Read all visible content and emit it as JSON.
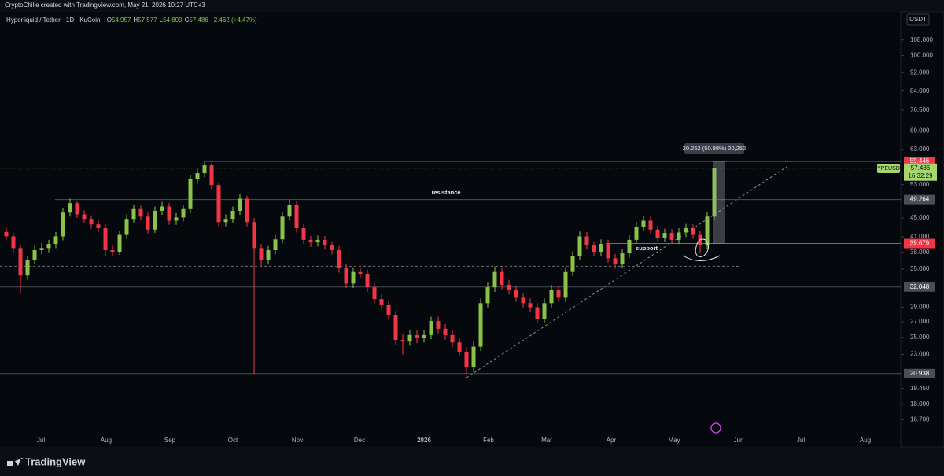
{
  "header": {
    "attribution": "CryptoChille created with TradingView.com, May 21, 2026 10:27 UTC+3",
    "brand": "TradingView"
  },
  "chart_data": {
    "type": "candlestick",
    "symbol": "Hyperliquid / Tether · 1D · KuCoin",
    "ohlc": [
      {
        "key": "O",
        "value": 54.957
      },
      {
        "key": "H",
        "value": 57.577
      },
      {
        "key": "L",
        "value": 54.809
      },
      {
        "key": "C",
        "value": 57.486
      }
    ],
    "change": {
      "value": 2.462,
      "label": "+2.462"
    },
    "change_pct": {
      "value": 4.47,
      "label": "(+4.47%)"
    },
    "currency": "USDT",
    "ticker": "HYPEUSDT",
    "last_price": 57.486,
    "countdown": "16:32:29",
    "log_scale": true,
    "grid": false,
    "up_color": "#8bc34a",
    "down_color": "#f23645",
    "ylim": [
      14.6,
      124
    ],
    "yticks": [
      {
        "value": 108,
        "label": "108.000"
      },
      {
        "value": 100,
        "label": "100.000"
      },
      {
        "value": 92,
        "label": "92.000"
      },
      {
        "value": 84,
        "label": "84.000"
      },
      {
        "value": 76.5,
        "label": "76.500"
      },
      {
        "value": 69,
        "label": "69.000"
      },
      {
        "value": 63,
        "label": "63.000"
      },
      {
        "value": 53,
        "label": "53.000"
      },
      {
        "value": 45,
        "label": "45.000"
      },
      {
        "value": 41,
        "label": "41.000"
      },
      {
        "value": 38,
        "label": "38.000"
      },
      {
        "value": 35,
        "label": "35.000"
      },
      {
        "value": 29,
        "label": "29.000"
      },
      {
        "value": 27,
        "label": "27.000"
      },
      {
        "value": 25,
        "label": "25.000"
      },
      {
        "value": 23,
        "label": "23.000"
      },
      {
        "value": 19.45,
        "label": "19.450"
      },
      {
        "value": 18,
        "label": "18.000"
      },
      {
        "value": 16.7,
        "label": "16.700"
      }
    ],
    "x_labels": [
      "Jul",
      "Aug",
      "Sep",
      "Oct",
      "Nov",
      "Dec",
      "2026",
      "Feb",
      "Mar",
      "Apr",
      "May",
      "Jun",
      "Jul",
      "Aug"
    ],
    "open": [
      42.0,
      41.1,
      38.8,
      33.9,
      36.6,
      38.4,
      38.8,
      39.6,
      41.1,
      46.2,
      48.4,
      45.8,
      44.8,
      43.6,
      42.8,
      38.4,
      38.1,
      41.4,
      44.8,
      47.0,
      45.3,
      42.5,
      46.6,
      47.6,
      44.4,
      45.1,
      47.0,
      54.4,
      56.1,
      58.3,
      52.9,
      44.1,
      44.8,
      46.6,
      49.5,
      44.1,
      38.8,
      36.6,
      38.4,
      40.5,
      45.3,
      48.0,
      42.8,
      40.4,
      39.9,
      40.4,
      39.3,
      38.4,
      35.2,
      32.6,
      34.5,
      34.2,
      32.0,
      30.2,
      29.3,
      27.9,
      24.7,
      24.5,
      25.3,
      24.9,
      25.3,
      27.1,
      26.1,
      25.3,
      24.4,
      23.3,
      21.6,
      23.9,
      29.6,
      32.0,
      34.5,
      32.4,
      31.6,
      30.4,
      29.6,
      29.0,
      27.4,
      29.6,
      31.6,
      30.4,
      34.5,
      37.3,
      41.1,
      39.3,
      38.1,
      39.6,
      36.9,
      35.9,
      37.8,
      40.4,
      43.1,
      44.4,
      42.5,
      40.8,
      41.8,
      40.4,
      41.9,
      42.8,
      41.4,
      39.3,
      45.3
    ],
    "high": [
      42.9,
      41.8,
      39.5,
      37.4,
      39.2,
      39.8,
      40.4,
      42.0,
      47.2,
      49.5,
      49.0,
      46.7,
      45.6,
      44.5,
      43.6,
      39.3,
      42.3,
      45.8,
      48.1,
      47.9,
      46.2,
      47.6,
      48.7,
      48.5,
      46.1,
      48.0,
      55.6,
      57.3,
      59.4,
      59.0,
      53.6,
      45.8,
      47.6,
      50.6,
      50.2,
      45.0,
      39.6,
      39.2,
      41.4,
      46.3,
      49.2,
      48.9,
      43.6,
      41.2,
      41.3,
      41.2,
      40.1,
      39.2,
      36.0,
      35.3,
      35.2,
      34.9,
      32.7,
      30.9,
      29.9,
      28.5,
      25.4,
      25.9,
      25.9,
      25.9,
      27.7,
      27.7,
      26.7,
      25.9,
      25.0,
      23.8,
      24.5,
      30.3,
      32.8,
      35.5,
      35.3,
      33.2,
      32.3,
      31.1,
      30.3,
      29.6,
      30.3,
      32.4,
      32.3,
      35.3,
      38.2,
      42.1,
      42.0,
      40.1,
      40.5,
      40.4,
      37.7,
      38.7,
      41.3,
      44.1,
      45.4,
      45.3,
      43.4,
      42.7,
      42.6,
      42.8,
      43.7,
      43.6,
      42.2,
      46.3,
      57.6
    ],
    "low": [
      40.3,
      38.0,
      31.0,
      33.2,
      35.9,
      37.6,
      38.0,
      38.8,
      40.3,
      45.3,
      45.0,
      43.9,
      42.7,
      41.9,
      37.2,
      37.3,
      37.5,
      40.6,
      44.0,
      44.4,
      41.7,
      41.8,
      45.7,
      43.5,
      43.5,
      44.2,
      46.1,
      53.3,
      55.0,
      51.8,
      43.2,
      43.2,
      44.0,
      45.7,
      43.2,
      20.9,
      35.4,
      35.8,
      37.6,
      39.7,
      44.4,
      41.9,
      39.6,
      39.0,
      39.1,
      38.5,
      37.6,
      34.4,
      31.9,
      31.9,
      33.5,
      31.3,
      29.6,
      28.7,
      27.3,
      24.1,
      23.0,
      24.0,
      24.3,
      24.4,
      24.8,
      25.5,
      24.7,
      23.8,
      22.8,
      20.9,
      21.1,
      23.4,
      29.0,
      31.3,
      31.7,
      30.9,
      29.8,
      29.0,
      28.4,
      26.8,
      26.9,
      29.0,
      29.8,
      29.8,
      33.8,
      36.5,
      38.5,
      37.3,
      37.3,
      36.1,
      35.1,
      35.2,
      37.0,
      39.6,
      42.2,
      41.7,
      40.0,
      40.0,
      39.6,
      39.6,
      41.0,
      40.6,
      37.8,
      38.6,
      44.6
    ],
    "close": [
      41.1,
      38.8,
      33.9,
      36.6,
      38.4,
      38.8,
      39.6,
      41.1,
      46.2,
      48.4,
      45.8,
      44.8,
      43.6,
      42.8,
      38.4,
      38.1,
      41.4,
      44.8,
      47.0,
      45.3,
      42.5,
      46.6,
      47.6,
      44.4,
      45.1,
      47.0,
      54.4,
      56.1,
      58.3,
      52.9,
      44.1,
      44.8,
      46.6,
      49.5,
      44.1,
      38.8,
      36.6,
      38.4,
      40.5,
      45.3,
      48.0,
      42.8,
      40.4,
      39.9,
      40.4,
      39.3,
      38.4,
      35.2,
      32.6,
      34.5,
      34.2,
      32.0,
      30.2,
      29.3,
      27.9,
      24.7,
      24.5,
      25.3,
      24.9,
      25.3,
      27.1,
      26.1,
      25.3,
      24.4,
      23.3,
      21.6,
      23.9,
      29.6,
      32.0,
      34.5,
      32.4,
      31.6,
      30.4,
      29.6,
      29.0,
      27.4,
      29.6,
      31.6,
      30.4,
      34.5,
      37.3,
      41.1,
      39.3,
      38.1,
      39.6,
      36.9,
      35.9,
      37.8,
      40.4,
      43.1,
      44.4,
      42.5,
      40.8,
      41.8,
      40.4,
      41.9,
      42.8,
      41.4,
      39.3,
      45.3,
      57.5
    ],
    "levels": [
      {
        "value": 59.446,
        "color": "#f23645"
      },
      {
        "value": 49.264,
        "color": "#4a4e59"
      },
      {
        "value": 39.679,
        "color": "#f23645"
      },
      {
        "value": 32.048,
        "color": "#4a4e59"
      },
      {
        "value": 20.938,
        "color": "#4a4e59"
      }
    ],
    "dashed_levels": [
      35.5
    ],
    "annotations": [
      "resistance",
      "support"
    ],
    "measure": "20.252 (50.98%) 20,252"
  }
}
